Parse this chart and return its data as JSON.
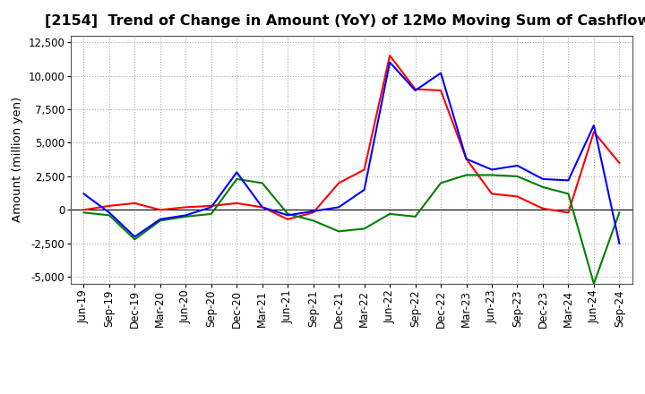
{
  "title": "[2154]  Trend of Change in Amount (YoY) of 12Mo Moving Sum of Cashflows",
  "ylabel": "Amount (million yen)",
  "x_labels": [
    "Jun-19",
    "Sep-19",
    "Dec-19",
    "Mar-20",
    "Jun-20",
    "Sep-20",
    "Dec-20",
    "Mar-21",
    "Jun-21",
    "Sep-21",
    "Dec-21",
    "Mar-22",
    "Jun-22",
    "Sep-22",
    "Dec-22",
    "Mar-23",
    "Jun-23",
    "Sep-23",
    "Dec-23",
    "Mar-24",
    "Jun-24",
    "Sep-24"
  ],
  "operating": [
    0,
    300,
    500,
    0,
    200,
    300,
    500,
    200,
    -700,
    -200,
    2000,
    3000,
    11500,
    9000,
    8900,
    3800,
    1200,
    1000,
    100,
    -200,
    5800,
    3500
  ],
  "investing": [
    -200,
    -400,
    -2200,
    -800,
    -500,
    -300,
    2300,
    2000,
    -300,
    -800,
    -1600,
    -1400,
    -300,
    -500,
    2000,
    2600,
    2600,
    2500,
    1700,
    1200,
    -5500,
    -200
  ],
  "free": [
    1200,
    -200,
    -2000,
    -700,
    -400,
    200,
    2800,
    200,
    -400,
    -100,
    200,
    1500,
    11000,
    8900,
    10200,
    3800,
    3000,
    3300,
    2300,
    2200,
    6300,
    -2500
  ],
  "ylim": [
    -5500,
    13000
  ],
  "yticks": [
    -5000,
    -2500,
    0,
    2500,
    5000,
    7500,
    10000,
    12500
  ],
  "operating_color": "#FF0000",
  "investing_color": "#008000",
  "free_color": "#0000FF",
  "bg_color": "#FFFFFF",
  "grid_color": "#AAAAAA",
  "title_fontsize": 11.5,
  "ylabel_fontsize": 9.5,
  "tick_fontsize": 8.5,
  "legend_fontsize": 9.5
}
